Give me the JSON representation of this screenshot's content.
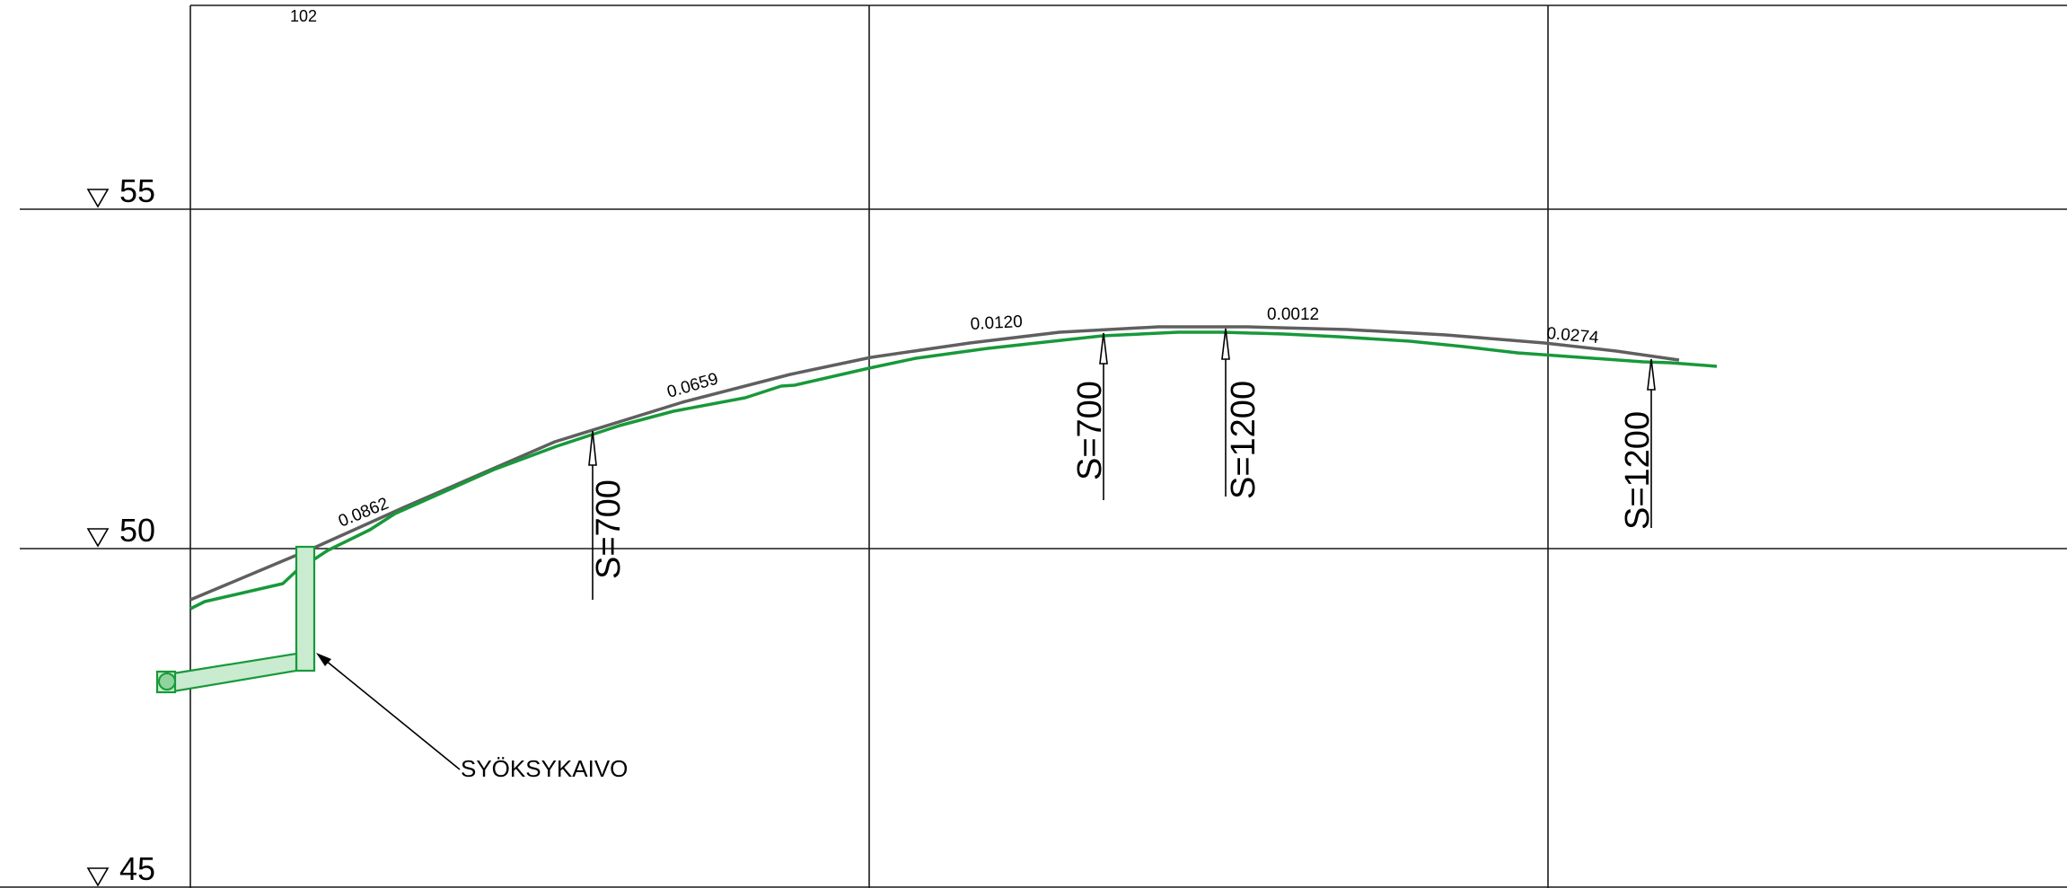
{
  "colors": {
    "grid": "#1a1a1a",
    "ground": "#5f5f5f",
    "pipe": "#17993a",
    "pipe_fill": "#c9ebcf",
    "text": "#000000",
    "background": "#ffffff"
  },
  "drawing": {
    "sheet_number": "102",
    "elevations": [
      {
        "value": "55",
        "symbol": "▽"
      },
      {
        "value": "50",
        "symbol": "▽"
      },
      {
        "value": "45",
        "symbol": "▽"
      }
    ],
    "slopes": [
      "0.0862",
      "0.0659",
      "0.0120",
      "0.0012",
      "0.0274"
    ],
    "pipe_labels": [
      "S=700",
      "S=700",
      "S=1200",
      "S=1200"
    ],
    "callout": "SYÖKSYKAIVO",
    "icons": {
      "elevation_marker": "triangle-down-icon",
      "label_pointer": "arrow-up-icon"
    }
  }
}
